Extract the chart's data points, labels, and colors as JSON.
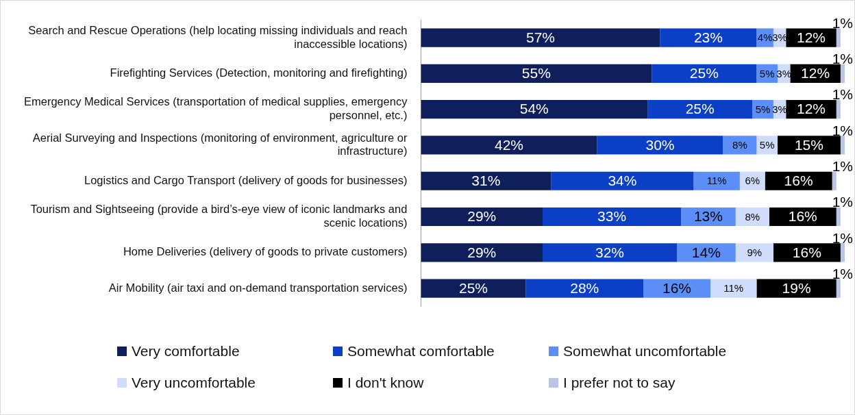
{
  "chart_data": {
    "type": "bar",
    "orientation": "horizontal",
    "stacked": true,
    "grid": false,
    "legend": "bottom",
    "tick_labels": "y",
    "categories": [
      "Search and Rescue Operations (help locating missing individuals and reach inaccessible locations)",
      "Firefighting Services (Detection, monitoring and firefighting)",
      "Emergency Medical Services (transportation of medical supplies, emergency personnel, etc.)",
      "Aerial Surveying and Inspections (monitoring of environment, agriculture or infrastructure)",
      "Logistics and Cargo Transport (delivery of goods for businesses)",
      "Tourism and Sightseeing (provide a bird’s-eye view of iconic landmarks and scenic locations)",
      "Home Deliveries (delivery of goods to private customers)",
      "Air Mobility (air taxi and on-demand transportation services)"
    ],
    "series": [
      {
        "name": "Very comfortable",
        "color": "#0e1f5b",
        "values": [
          57,
          55,
          54,
          42,
          31,
          29,
          29,
          25
        ],
        "value_labels": [
          "57%",
          "55%",
          "54%",
          "42%",
          "31%",
          "29%",
          "29%",
          "25%"
        ]
      },
      {
        "name": "Somewhat comfortable",
        "color": "#0a3fc6",
        "values": [
          23,
          25,
          25,
          30,
          34,
          33,
          32,
          28
        ],
        "value_labels": [
          "23%",
          "25%",
          "25%",
          "30%",
          "34%",
          "33%",
          "32%",
          "28%"
        ]
      },
      {
        "name": "Somewhat uncomfortable",
        "color": "#5b8ef7",
        "values": [
          4,
          5,
          5,
          8,
          11,
          13,
          14,
          16
        ],
        "value_labels": [
          "4%",
          "5%",
          "5%",
          "8%",
          "11%",
          "13%",
          "14%",
          "16%"
        ]
      },
      {
        "name": "Very uncomfortable",
        "color": "#d0dcfb",
        "values": [
          3,
          3,
          3,
          5,
          6,
          8,
          9,
          11
        ],
        "value_labels": [
          "3%",
          "3%",
          "3%",
          "5%",
          "6%",
          "8%",
          "9%",
          "11%"
        ]
      },
      {
        "name": "I don't know",
        "color": "#000000",
        "values": [
          12,
          12,
          12,
          15,
          16,
          16,
          16,
          19
        ],
        "value_labels": [
          "12%",
          "12%",
          "12%",
          "15%",
          "16%",
          "16%",
          "16%",
          "19%"
        ]
      },
      {
        "name": "I prefer not to say",
        "color": "#b9c5e6",
        "values": [
          1,
          1,
          1,
          1,
          1,
          1,
          1,
          1
        ],
        "value_labels": [
          "1%",
          "1%",
          "1%",
          "1%",
          "1%",
          "1%",
          "1%",
          "1%"
        ]
      }
    ]
  }
}
